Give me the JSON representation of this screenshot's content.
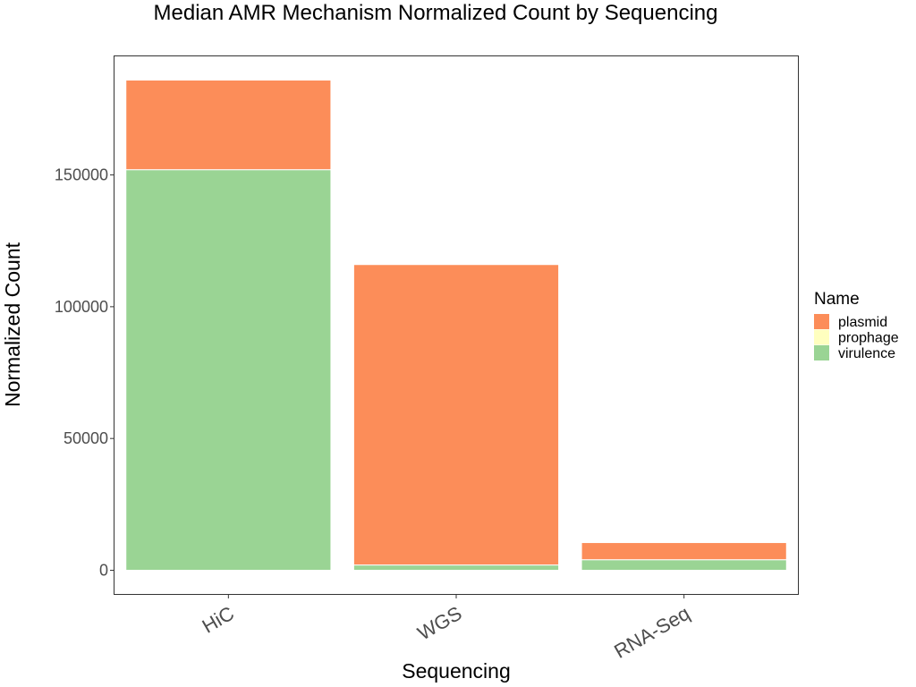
{
  "chart_data": {
    "type": "bar",
    "stacked": true,
    "title": "Median AMR Mechanism Normalized Count by Sequencing",
    "xlabel": "Sequencing",
    "ylabel": "Normalized Count",
    "categories": [
      "HiC",
      "WGS",
      "RNA-Seq"
    ],
    "series": [
      {
        "name": "virulence",
        "color": "#9ad494",
        "values": [
          152000,
          2000,
          4000
        ]
      },
      {
        "name": "prophage",
        "color": "#ffffbf",
        "values": [
          0,
          0,
          0
        ]
      },
      {
        "name": "plasmid",
        "color": "#fc8d59",
        "values": [
          34000,
          114000,
          6500
        ]
      }
    ],
    "stack_order": [
      "virulence",
      "prophage",
      "plasmid"
    ],
    "ylim": [
      -9000,
      195000
    ],
    "yticks": [
      0,
      50000,
      100000,
      150000
    ],
    "ytick_labels": [
      "0",
      "50000",
      "100000",
      "150000"
    ],
    "grid": false,
    "legend": {
      "title": "Name",
      "position": "right",
      "entries": [
        {
          "label": "plasmid",
          "color": "#fc8d59"
        },
        {
          "label": "prophage",
          "color": "#ffffbf"
        },
        {
          "label": "virulence",
          "color": "#9ad494"
        }
      ]
    }
  }
}
